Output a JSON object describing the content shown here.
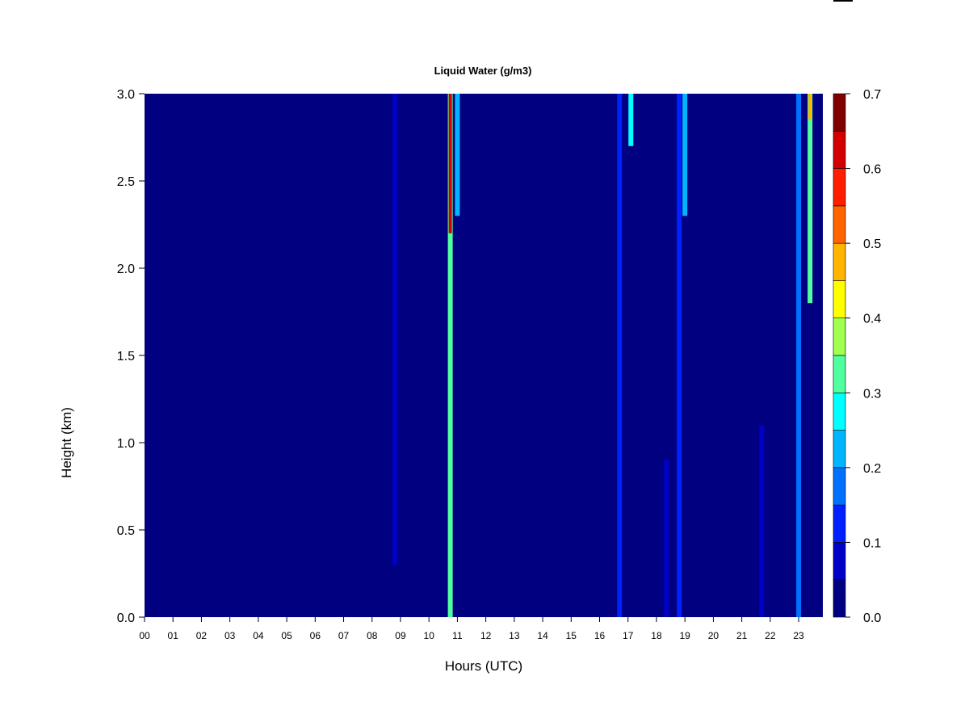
{
  "chart_data": {
    "type": "heatmap",
    "title": "Liquid Water (g/m3)",
    "xlabel": "Hours (UTC)",
    "ylabel": "Height (km)",
    "x_ticks": [
      "00",
      "01",
      "02",
      "03",
      "04",
      "05",
      "06",
      "07",
      "08",
      "09",
      "10",
      "11",
      "12",
      "13",
      "14",
      "15",
      "16",
      "17",
      "18",
      "19",
      "20",
      "21",
      "22",
      "23"
    ],
    "y_ticks": [
      "0.0",
      "0.5",
      "1.0",
      "1.5",
      "2.0",
      "2.5",
      "3.0"
    ],
    "xlim": [
      0,
      23.85
    ],
    "ylim": [
      0,
      3.0
    ],
    "colorbar": {
      "ticks": [
        "0.0",
        "0.1",
        "0.2",
        "0.3",
        "0.4",
        "0.5",
        "0.6",
        "0.7"
      ],
      "range": [
        0,
        0.7
      ],
      "levels": [
        {
          "from": 0.0,
          "to": 0.05,
          "color": "#000080"
        },
        {
          "from": 0.05,
          "to": 0.1,
          "color": "#0000c8"
        },
        {
          "from": 0.1,
          "to": 0.15,
          "color": "#0020ff"
        },
        {
          "from": 0.15,
          "to": 0.2,
          "color": "#0070ff"
        },
        {
          "from": 0.2,
          "to": 0.25,
          "color": "#00b4ff"
        },
        {
          "from": 0.25,
          "to": 0.3,
          "color": "#00ffff"
        },
        {
          "from": 0.3,
          "to": 0.35,
          "color": "#50ffa0"
        },
        {
          "from": 0.35,
          "to": 0.4,
          "color": "#a0ff50"
        },
        {
          "from": 0.4,
          "to": 0.45,
          "color": "#ffff00"
        },
        {
          "from": 0.45,
          "to": 0.5,
          "color": "#ffb400"
        },
        {
          "from": 0.5,
          "to": 0.55,
          "color": "#ff6400"
        },
        {
          "from": 0.55,
          "to": 0.6,
          "color": "#ff1e00"
        },
        {
          "from": 0.6,
          "to": 0.65,
          "color": "#d20000"
        },
        {
          "from": 0.65,
          "to": 0.7,
          "color": "#800000"
        }
      ]
    },
    "features": [
      {
        "time": 8.8,
        "z_bottom": 0.3,
        "z_top": 3.0,
        "value": 0.06
      },
      {
        "time": 10.75,
        "z_bottom": 0.0,
        "z_top": 3.0,
        "value": 0.3,
        "peak_value": 0.6,
        "peak_z_bottom": 2.2,
        "peak_z_top": 3.0
      },
      {
        "time": 11.0,
        "z_bottom": 2.3,
        "z_top": 3.0,
        "value": 0.2
      },
      {
        "time": 16.7,
        "z_bottom": 0.0,
        "z_top": 3.0,
        "value": 0.12
      },
      {
        "time": 17.1,
        "z_bottom": 2.7,
        "z_top": 3.0,
        "value": 0.25
      },
      {
        "time": 18.35,
        "z_bottom": 0.0,
        "z_top": 0.9,
        "value": 0.08
      },
      {
        "time": 18.8,
        "z_bottom": 0.0,
        "z_top": 3.0,
        "value": 0.1
      },
      {
        "time": 19.0,
        "z_bottom": 2.3,
        "z_top": 3.0,
        "value": 0.2
      },
      {
        "time": 21.7,
        "z_bottom": 0.0,
        "z_top": 1.1,
        "value": 0.07
      },
      {
        "time": 23.0,
        "z_bottom": 0.0,
        "z_top": 3.0,
        "value": 0.18
      },
      {
        "time": 23.4,
        "z_bottom": 1.8,
        "z_top": 3.0,
        "value": 0.3,
        "peak_value": 0.45,
        "peak_z_bottom": 2.85,
        "peak_z_top": 3.0
      }
    ]
  }
}
